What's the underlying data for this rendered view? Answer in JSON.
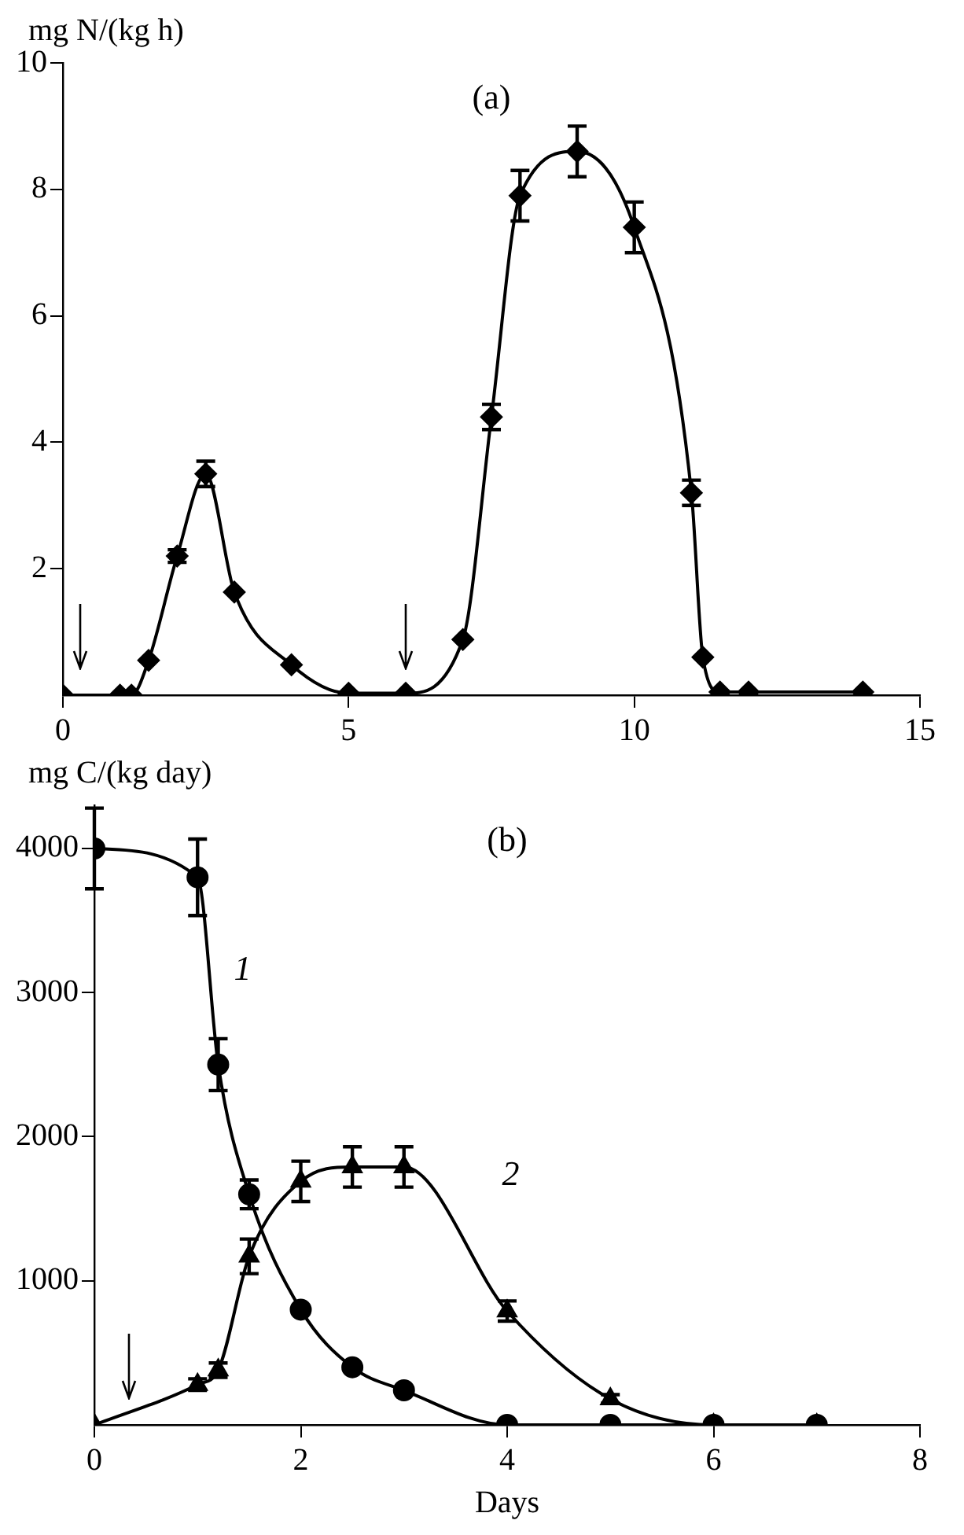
{
  "chart_data": [
    {
      "type": "line",
      "title": "(a)",
      "ylabel": "mg N/(kg h)",
      "xlim": [
        0,
        15
      ],
      "ylim": [
        0,
        10
      ],
      "xticks": [
        0,
        5,
        10,
        15
      ],
      "yticks": [
        2,
        4,
        6,
        8,
        10
      ],
      "grid": false,
      "legend": false,
      "marker": "diamond",
      "line_style": "solid",
      "x": [
        0,
        1.0,
        1.2,
        1.5,
        2.0,
        2.5,
        3.0,
        4.0,
        5.0,
        6.0,
        7.0,
        7.5,
        8.0,
        9.0,
        10.0,
        11.0,
        11.2,
        11.5,
        12.0,
        14.0
      ],
      "series": [
        {
          "color": "#000000",
          "values": [
            0,
            0,
            0,
            0.55,
            2.2,
            3.5,
            1.63,
            0.48,
            0.03,
            0.03,
            0.88,
            4.4,
            7.9,
            8.6,
            7.4,
            3.2,
            0.6,
            0.05,
            0.05,
            0.05
          ],
          "errors": [
            null,
            null,
            null,
            null,
            0.1,
            0.2,
            null,
            null,
            null,
            null,
            null,
            0.2,
            0.4,
            0.4,
            0.4,
            0.2,
            null,
            null,
            null,
            null
          ]
        }
      ]
    },
    {
      "type": "line",
      "title": "(b)",
      "ylabel": "mg C/(kg day)",
      "xlabel": "Days",
      "xlim": [
        0,
        8
      ],
      "ylim": [
        0,
        4300
      ],
      "xticks": [
        0,
        2,
        4,
        6,
        8
      ],
      "yticks": [
        1000,
        2000,
        3000,
        4000
      ],
      "grid": false,
      "legend": false,
      "line_style": "solid",
      "series": [
        {
          "name": "1",
          "color": "#000000",
          "marker": "circle",
          "x": [
            0,
            1.0,
            1.2,
            1.5,
            2.0,
            2.5,
            3.0,
            4.0,
            5.0,
            6.0,
            7.0
          ],
          "values": [
            4000,
            3800,
            2500,
            1600,
            800,
            400,
            240,
            0,
            0,
            0,
            0
          ],
          "errors": [
            280,
            265,
            180,
            100,
            null,
            null,
            null,
            null,
            null,
            null,
            null
          ]
        },
        {
          "name": "2",
          "color": "#000000",
          "marker": "triangle",
          "x": [
            0,
            1.0,
            1.2,
            1.5,
            2.0,
            2.5,
            3.0,
            4.0,
            5.0,
            6.0,
            7.0
          ],
          "values": [
            0,
            280,
            380,
            1170,
            1690,
            1790,
            1790,
            790,
            180,
            0,
            0
          ],
          "errors": [
            null,
            40,
            50,
            120,
            140,
            140,
            140,
            70,
            30,
            null,
            null
          ]
        }
      ]
    }
  ]
}
